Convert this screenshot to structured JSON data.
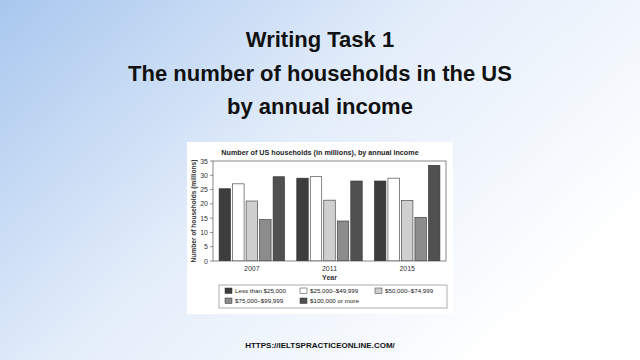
{
  "header": {
    "lines": [
      "Writing Task 1",
      "The number of households in the US",
      "by annual income"
    ]
  },
  "footer": {
    "url": "HTTPS://IELTSPRACTICEONLINE.COM/"
  },
  "chart_data": {
    "type": "bar",
    "title": "Number of US households (in millions), by annual income",
    "x_label": "Year",
    "y_label": "Number of households (millions)",
    "categories": [
      "2007",
      "2011",
      "2015"
    ],
    "series": [
      {
        "name": "Less than $25,000",
        "color": "#3d3d3d",
        "values": [
          25.3,
          29,
          28
        ]
      },
      {
        "name": "$25,000–$49,999",
        "color": "#ffffff",
        "values": [
          27,
          29.5,
          29
        ]
      },
      {
        "name": "$50,000–$74,999",
        "color": "#cfcfcf",
        "values": [
          21,
          21.3,
          21.2
        ]
      },
      {
        "name": "$75,000–$99,999",
        "color": "#8c8c8c",
        "values": [
          14.5,
          14,
          15.3
        ]
      },
      {
        "name": "$100,000 or more",
        "color": "#505050",
        "values": [
          29.5,
          28,
          33.5
        ]
      }
    ],
    "ylim": [
      0,
      35
    ],
    "yticks": [
      0,
      5,
      10,
      15,
      20,
      25,
      30,
      35
    ],
    "grid": false,
    "legend": "bottom"
  }
}
